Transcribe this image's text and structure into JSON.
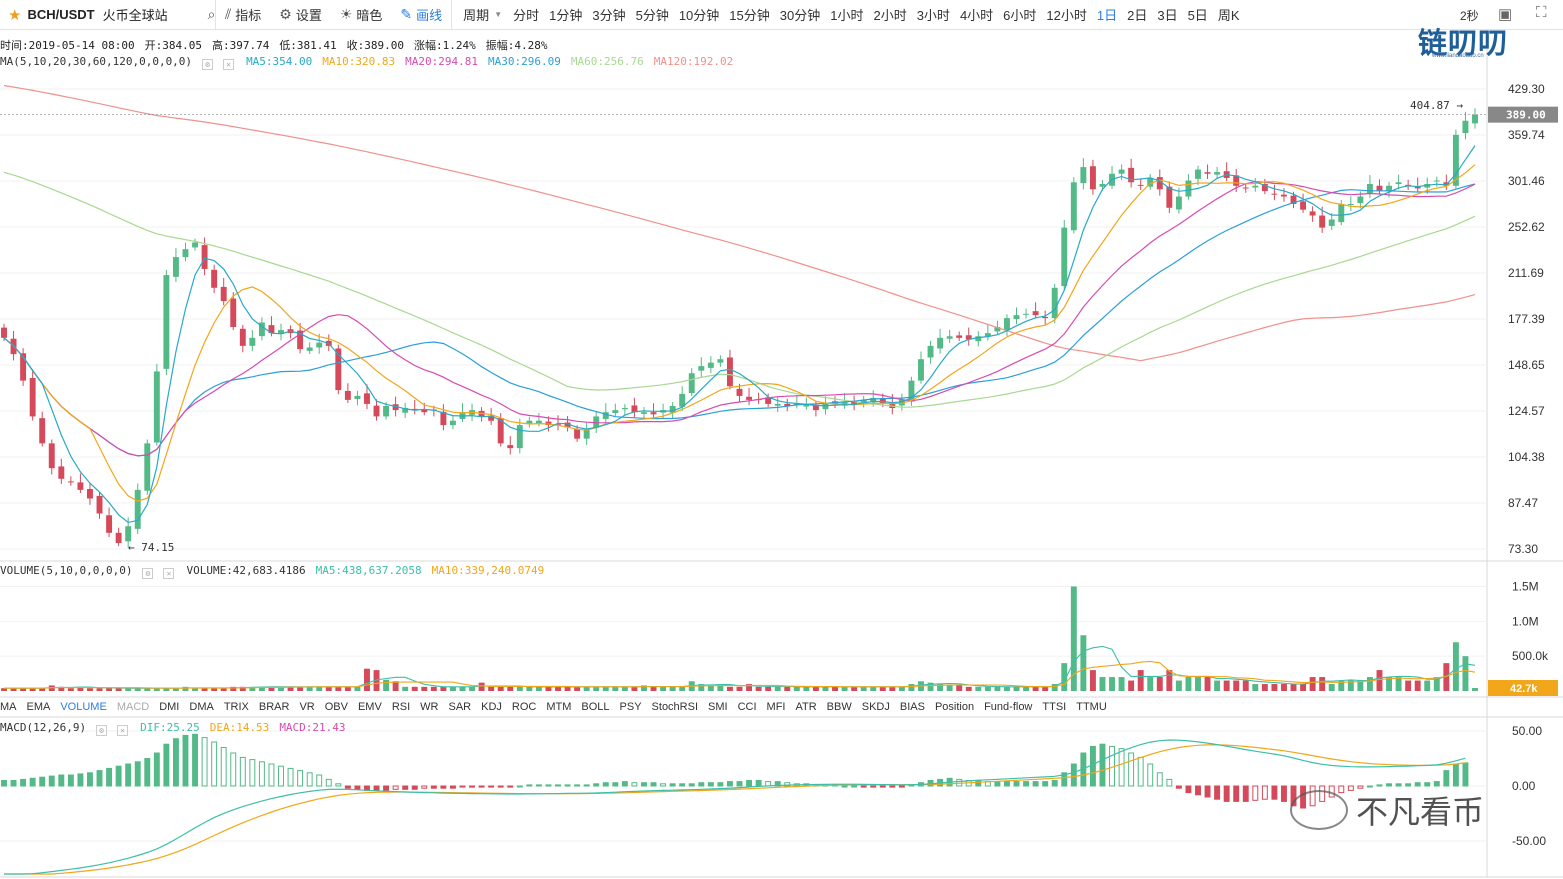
{
  "toolbar": {
    "symbol": "BCH/USDT",
    "exchange": "火币全球站",
    "buttons": [
      {
        "label": "指标",
        "icon": "indicator-icon"
      },
      {
        "label": "设置",
        "icon": "gear-icon"
      },
      {
        "label": "暗色",
        "icon": "sun-icon"
      },
      {
        "label": "画线",
        "icon": "pencil-icon"
      }
    ],
    "period_label": "周期",
    "periods": [
      "分时",
      "1分钟",
      "3分钟",
      "5分钟",
      "10分钟",
      "15分钟",
      "30分钟",
      "1小时",
      "2小时",
      "3小时",
      "4小时",
      "6小时",
      "12小时",
      "1日",
      "2日",
      "3日",
      "5日",
      "周K"
    ],
    "active_period": "1日",
    "refresh": "2秒"
  },
  "ohlc": {
    "time": "时间:2019-05-14 08:00",
    "open": "开:384.05",
    "high": "高:397.74",
    "low": "低:381.41",
    "close": "收:389.00",
    "change": "涨幅:1.24%",
    "amplitude": "振幅:4.28%"
  },
  "ma_legend": {
    "name": "MA(5,10,20,30,60,120,0,0,0,0)",
    "ma5": "MA5:354.00",
    "ma10": "MA10:320.83",
    "ma20": "MA20:294.81",
    "ma30": "MA30:296.09",
    "ma60": "MA60:256.76",
    "ma120": "MA120:192.02"
  },
  "vol_legend": {
    "name": "VOLUME(5,10,0,0,0,0)",
    "vol": "VOLUME:42,683.4186",
    "ma5": "MA5:438,637.2058",
    "ma10": "MA10:339,240.0749"
  },
  "macd_legend": {
    "name": "MACD(12,26,9)",
    "dif": "DIF:25.25",
    "dea": "DEA:14.53",
    "macd": "MACD:21.43"
  },
  "indicators": [
    "MA",
    "EMA",
    "VOLUME",
    "MACD",
    "DMI",
    "DMA",
    "TRIX",
    "BRAR",
    "VR",
    "OBV",
    "EMV",
    "RSI",
    "WR",
    "SAR",
    "KDJ",
    "ROC",
    "MTM",
    "BOLL",
    "PSY",
    "StochRSI",
    "SMI",
    "CCI",
    "MFI",
    "ATR",
    "BBW",
    "SKDJ",
    "BIAS",
    "Position",
    "Fund-flow",
    "TTSI",
    "TTMU"
  ],
  "indicators_active": "VOLUME",
  "indicators_dim": "MACD",
  "watermark_logo": "链叨叨",
  "watermark_logo_sub": "www.liandaodao.cn",
  "watermark_text": "不凡看币",
  "colors": {
    "up": "#53b987",
    "down": "#d44a5a",
    "ma5": "#27a9c7",
    "ma10": "#f2a619",
    "ma20": "#d54bb0",
    "ma30": "#2b9fd8",
    "ma60": "#a8d890",
    "ma120": "#f0918b",
    "dif": "#3cbfa8",
    "dea": "#f2a619"
  },
  "chart_data": {
    "type": "candlestick",
    "price_ticks": [
      "429.30",
      "389.00",
      "359.74",
      "301.46",
      "252.62",
      "211.69",
      "177.39",
      "148.65",
      "124.57",
      "104.38",
      "87.47",
      "73.30"
    ],
    "price_ticks_values": [
      429.3,
      389.0,
      359.74,
      301.46,
      252.62,
      211.69,
      177.39,
      148.65,
      124.57,
      104.38,
      87.47,
      73.3
    ],
    "last_price": "389.00",
    "high_marker": "404.87",
    "low_marker": "74.15",
    "volume_ticks": [
      "1.5M",
      "1.0M",
      "500.0k"
    ],
    "volume_ticks_values": [
      1500000,
      1000000,
      500000
    ],
    "last_volume": "42.7k",
    "macd_ticks": [
      "50.00",
      "0.00",
      "-50.00"
    ],
    "macd_ticks_values": [
      50,
      0,
      -50
    ],
    "closes": [
      165,
      155,
      140,
      122,
      110,
      100,
      96,
      95,
      92,
      89,
      84,
      78,
      75,
      80,
      92,
      110,
      145,
      210,
      225,
      232,
      238,
      215,
      200,
      190,
      172,
      160,
      165,
      175,
      168,
      170,
      168,
      158,
      159,
      162,
      160,
      135,
      130,
      132,
      128,
      122,
      127,
      125,
      126,
      125,
      124,
      125,
      118,
      120,
      124,
      125,
      122,
      120,
      110,
      108,
      118,
      120,
      120,
      118,
      118,
      117,
      112,
      116,
      122,
      124,
      125,
      126,
      124,
      124,
      123,
      125,
      127,
      133,
      144,
      148,
      150,
      152,
      137,
      132,
      130,
      130,
      128,
      128,
      127,
      128,
      128,
      125,
      128,
      128,
      129,
      128,
      130,
      131,
      128,
      126,
      130,
      140,
      152,
      160,
      165,
      166,
      165,
      164,
      166,
      168,
      172,
      178,
      180,
      181,
      180,
      178,
      200,
      252,
      300,
      318,
      292,
      298,
      310,
      315,
      300,
      296,
      305,
      292,
      272,
      284,
      302,
      315,
      310,
      312,
      305,
      296,
      294,
      296,
      290,
      287,
      284,
      276,
      270,
      264,
      252,
      260,
      276,
      276,
      284,
      298,
      290,
      296,
      300,
      296,
      293,
      298,
      302,
      296,
      360,
      380,
      389
    ],
    "volumes_k": [
      40,
      40,
      40,
      40,
      40,
      80,
      60,
      40,
      60,
      40,
      40,
      40,
      40,
      40,
      40,
      40,
      40,
      40,
      40,
      60,
      40,
      40,
      40,
      40,
      60,
      60,
      60,
      60,
      60,
      60,
      60,
      60,
      60,
      60,
      60,
      60,
      60,
      60,
      320,
      300,
      160,
      140,
      60,
      60,
      60,
      60,
      60,
      60,
      60,
      60,
      120,
      60,
      60,
      60,
      60,
      60,
      60,
      60,
      60,
      60,
      60,
      60,
      60,
      60,
      60,
      60,
      60,
      80,
      60,
      60,
      60,
      60,
      140,
      100,
      80,
      80,
      60,
      60,
      100,
      60,
      60,
      60,
      60,
      60,
      60,
      60,
      60,
      60,
      60,
      60,
      60,
      60,
      60,
      60,
      60,
      100,
      140,
      120,
      100,
      80,
      80,
      60,
      60,
      60,
      60,
      60,
      60,
      60,
      60,
      60,
      100,
      400,
      1500,
      800,
      300,
      200,
      200,
      200,
      150,
      300,
      200,
      200,
      300,
      150,
      200,
      200,
      200,
      150,
      150,
      150,
      150,
      100,
      100,
      100,
      100,
      100,
      100,
      200,
      200,
      100,
      150,
      150,
      150,
      200,
      300,
      200,
      200,
      150,
      150,
      150,
      200,
      400,
      700,
      500,
      43
    ],
    "macd_hist": [
      5,
      5,
      6,
      7,
      8,
      9,
      10,
      10,
      11,
      12,
      14,
      16,
      18,
      20,
      22,
      25,
      30,
      38,
      43,
      46,
      47,
      44,
      40,
      35,
      30,
      26,
      24,
      22,
      20,
      18,
      16,
      14,
      12,
      10,
      6,
      2,
      -2,
      -3,
      -4,
      -4,
      -4,
      -3,
      -3,
      -3,
      -2,
      -2,
      -2,
      -2,
      -1,
      -1,
      -1,
      -1,
      -1,
      -1,
      0,
      1,
      1,
      1,
      1,
      1,
      1,
      1,
      2,
      3,
      3,
      4,
      3,
      3,
      3,
      2,
      2,
      2,
      2,
      3,
      3,
      3,
      4,
      4,
      5,
      5,
      4,
      4,
      3,
      2,
      2,
      1,
      1,
      1,
      0,
      0,
      -1,
      -1,
      -1,
      -1,
      -1,
      1,
      3,
      5,
      6,
      7,
      6,
      5,
      5,
      4,
      4,
      4,
      4,
      4,
      4,
      4,
      5,
      12,
      20,
      30,
      36,
      38,
      36,
      34,
      30,
      26,
      20,
      12,
      6,
      -2,
      -6,
      -8,
      -10,
      -12,
      -14,
      -14,
      -14,
      -13,
      -12,
      -12,
      -14,
      -18,
      -20,
      -18,
      -14,
      -10,
      -6,
      -4,
      -2,
      0,
      1,
      2,
      2,
      2,
      3,
      3,
      4,
      14,
      20,
      21
    ]
  }
}
